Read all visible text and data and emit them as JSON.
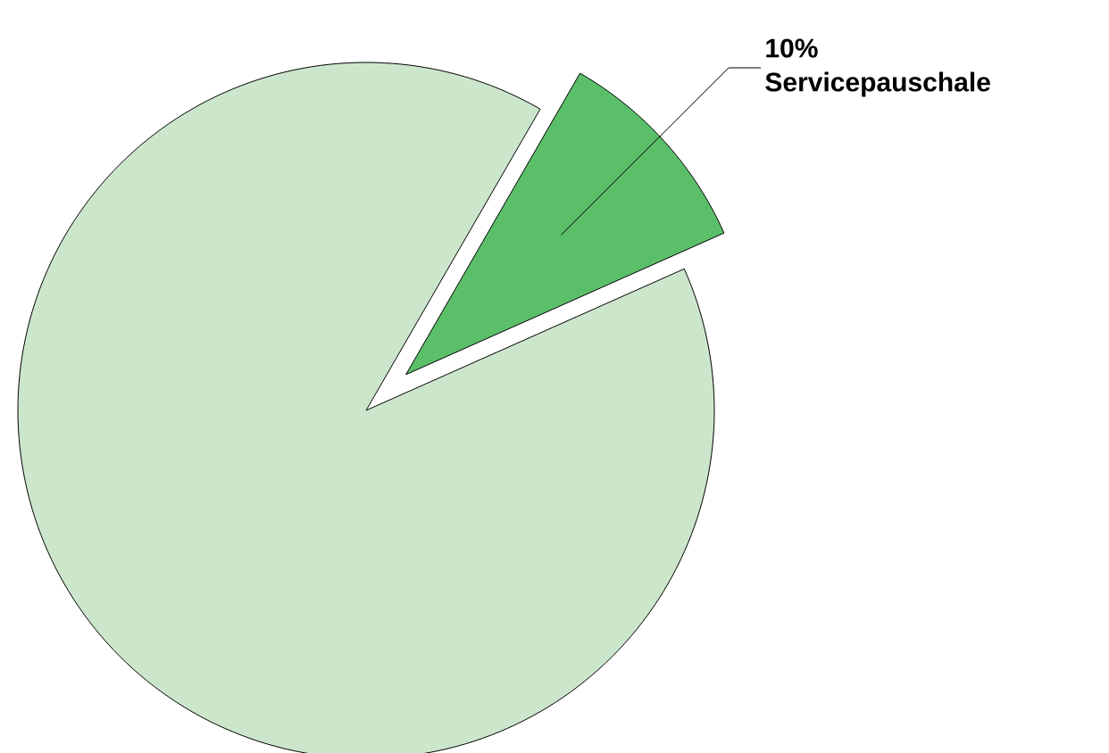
{
  "chart_data": {
    "type": "pie",
    "categories": [
      "Servicepauschale",
      null
    ],
    "values": [
      10,
      90
    ],
    "colors": [
      "#5bbf6a",
      "#cce6cc"
    ],
    "value_labels": [
      "10%",
      null
    ]
  }
}
